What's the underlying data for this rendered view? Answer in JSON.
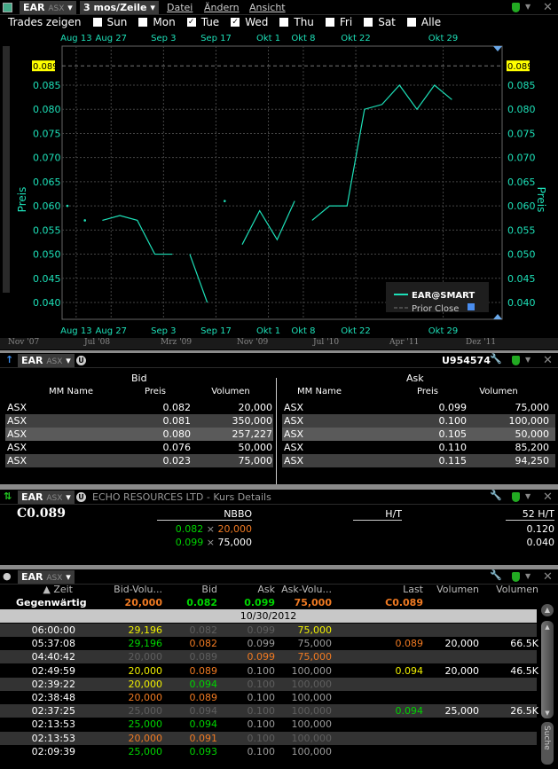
{
  "chart_window": {
    "symbol": "EAR",
    "exchange": "ASX",
    "period": "3 mos/Zeile",
    "menus": [
      "Datei",
      "Ändern",
      "Ansicht"
    ],
    "trades_label": "Trades zeigen",
    "days": [
      {
        "label": "Sun",
        "checked": false
      },
      {
        "label": "Mon",
        "checked": false
      },
      {
        "label": "Tue",
        "checked": true
      },
      {
        "label": "Wed",
        "checked": true
      },
      {
        "label": "Thu",
        "checked": false
      },
      {
        "label": "Fri",
        "checked": false
      },
      {
        "label": "Sat",
        "checked": false
      },
      {
        "label": "Alle",
        "checked": false
      }
    ],
    "navigator_labels": [
      "Nov '07",
      "Jul '08",
      "Mrz '09",
      "Nov '09",
      "Jul '10",
      "Apr '11",
      "Dez '11"
    ]
  },
  "chart_data": {
    "type": "line",
    "ylabel": "Preis",
    "ylim": [
      0.038,
      0.092
    ],
    "yticks": [
      "0.085",
      "0.080",
      "0.075",
      "0.070",
      "0.065",
      "0.060",
      "0.055",
      "0.050",
      "0.045",
      "0.040"
    ],
    "xticks": [
      {
        "label": "Aug 13",
        "pos": 0.5
      },
      {
        "label": "Aug 27",
        "pos": 2.5
      },
      {
        "label": "Sep 3",
        "pos": 5.5
      },
      {
        "label": "Sep 17",
        "pos": 8.5
      },
      {
        "label": "Okt 1",
        "pos": 11.5
      },
      {
        "label": "Okt 8",
        "pos": 13.5
      },
      {
        "label": "Okt 22",
        "pos": 16.5
      },
      {
        "label": "Okt 29",
        "pos": 21.5
      }
    ],
    "series": [
      {
        "name": "EAR@SMART",
        "color": "#1de0b8",
        "segments": [
          [
            0.06
          ],
          [
            0.057
          ],
          [
            0.057,
            0.058,
            0.057,
            0.05,
            0.05
          ],
          [
            0.05,
            0.04
          ],
          [
            0.061
          ],
          [
            0.052,
            0.059,
            0.053,
            0.061
          ],
          [
            0.057,
            0.06,
            0.06,
            0.08,
            0.081,
            0.085,
            0.08,
            0.085,
            0.082
          ]
        ]
      }
    ],
    "prior_close": {
      "name": "Prior Close",
      "value": 0.089,
      "label": "0.089",
      "color": "#ffff00"
    },
    "grid": true,
    "legend": "bottom-right"
  },
  "book": {
    "symbol": "EAR",
    "exchange": "ASX",
    "account": "U954574",
    "bid_title": "Bid",
    "ask_title": "Ask",
    "cols": [
      "MM Name",
      "Preis",
      "Volumen"
    ],
    "bids": [
      [
        "ASX",
        "0.082",
        "20,000"
      ],
      [
        "ASX",
        "0.081",
        "350,000"
      ],
      [
        "ASX",
        "0.080",
        "257,227"
      ],
      [
        "ASX",
        "0.076",
        "50,000"
      ],
      [
        "ASX",
        "0.023",
        "75,000"
      ]
    ],
    "asks": [
      [
        "ASX",
        "0.099",
        "75,000"
      ],
      [
        "ASX",
        "0.100",
        "100,000"
      ],
      [
        "ASX",
        "0.105",
        "50,000"
      ],
      [
        "ASX",
        "0.110",
        "85,200"
      ],
      [
        "ASX",
        "0.115",
        "94,250"
      ]
    ]
  },
  "quote": {
    "symbol": "EAR",
    "exchange": "ASX",
    "title": "ECHO RESOURCES LTD - Kurs Details",
    "last": "C0.089",
    "nbbo_label": "NBBO",
    "ht_label": "H/T",
    "ht52_label": "52 H/T",
    "bid": "0.082",
    "bid_size": "20,000",
    "ask": "0.099",
    "ask_size": "75,000",
    "times": "×",
    "high52": "0.120",
    "low52": "0.040"
  },
  "tas": {
    "symbol": "EAR",
    "exchange": "ASX",
    "cols": [
      "▲ Zeit",
      "Bid-Volu...",
      "Bid",
      "Ask",
      "Ask-Volu...",
      "Last",
      "Volumen",
      "Volumen"
    ],
    "current": {
      "label": "Gegenwärtig",
      "bidvol": "20,000",
      "bid": "0.082",
      "ask": "0.099",
      "askvol": "75,000",
      "last": "C0.089"
    },
    "date": "10/30/2012",
    "search": "Suche",
    "rows": [
      {
        "t": "06:00:00",
        "bv": [
          "29,196",
          "y"
        ],
        "b": [
          "0.082",
          "d"
        ],
        "a": [
          "0.099",
          "d"
        ],
        "av": [
          "75,000",
          "y"
        ]
      },
      {
        "t": "05:37:08",
        "bv": [
          "29,196",
          "g"
        ],
        "b": [
          "0.082",
          "o"
        ],
        "a": [
          "0.099",
          "l"
        ],
        "av": [
          "75,000",
          "l"
        ],
        "last": [
          "0.089",
          "o"
        ],
        "vol": "20,000",
        "cum": "66.5K"
      },
      {
        "t": "04:40:42",
        "bv": [
          "20,000",
          "d"
        ],
        "b": [
          "0.089",
          "d"
        ],
        "a": [
          "0.099",
          "o"
        ],
        "av": [
          "75,000",
          "o"
        ]
      },
      {
        "t": "02:49:59",
        "bv": [
          "20,000",
          "y"
        ],
        "b": [
          "0.089",
          "o"
        ],
        "a": [
          "0.100",
          "l"
        ],
        "av": [
          "100,000",
          "l"
        ],
        "last": [
          "0.094",
          "y"
        ],
        "vol": "20,000",
        "cum": "46.5K"
      },
      {
        "t": "02:39:22",
        "bv": [
          "20,000",
          "y"
        ],
        "b": [
          "0.094",
          "g"
        ],
        "a": [
          "0.100",
          "d"
        ],
        "av": [
          "100,000",
          "d"
        ]
      },
      {
        "t": "02:38:48",
        "bv": [
          "20,000",
          "o"
        ],
        "b": [
          "0.089",
          "o"
        ],
        "a": [
          "0.100",
          "l"
        ],
        "av": [
          "100,000",
          "l"
        ]
      },
      {
        "t": "02:37:25",
        "bv": [
          "25,000",
          "d"
        ],
        "b": [
          "0.094",
          "d"
        ],
        "a": [
          "0.100",
          "d"
        ],
        "av": [
          "100,000",
          "d"
        ],
        "last": [
          "0.094",
          "g"
        ],
        "vol": "25,000",
        "cum": "26.5K"
      },
      {
        "t": "02:13:53",
        "bv": [
          "25,000",
          "g"
        ],
        "b": [
          "0.094",
          "g"
        ],
        "a": [
          "0.100",
          "l"
        ],
        "av": [
          "100,000",
          "l"
        ]
      },
      {
        "t": "02:13:53",
        "bv": [
          "20,000",
          "o"
        ],
        "b": [
          "0.091",
          "o"
        ],
        "a": [
          "0.100",
          "d"
        ],
        "av": [
          "100,000",
          "d"
        ]
      },
      {
        "t": "02:09:39",
        "bv": [
          "25,000",
          "g"
        ],
        "b": [
          "0.093",
          "g"
        ],
        "a": [
          "0.100",
          "l"
        ],
        "av": [
          "100,000",
          "l"
        ]
      }
    ]
  }
}
